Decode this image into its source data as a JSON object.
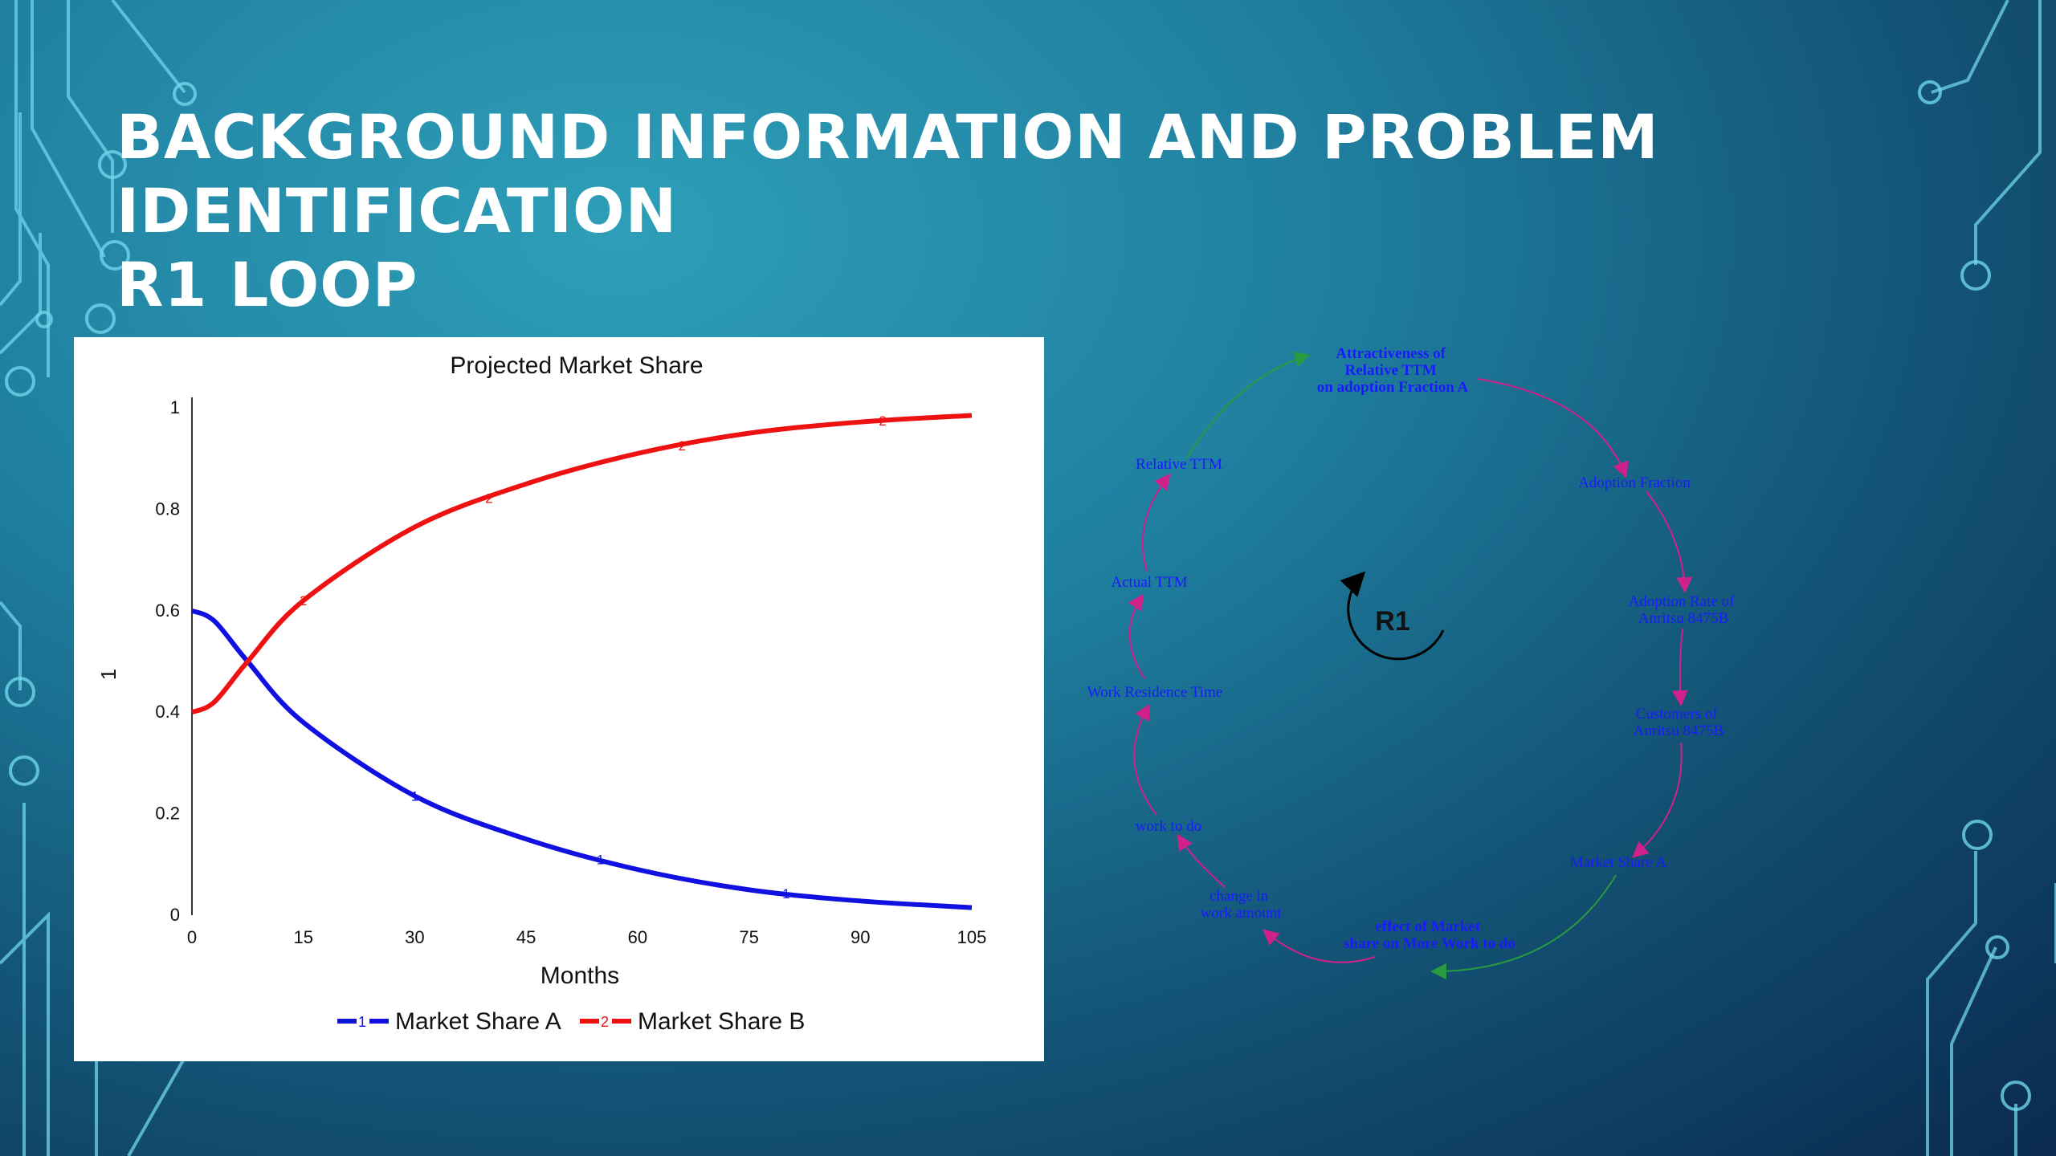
{
  "slide": {
    "title_line1": "BACKGROUND INFORMATION AND PROBLEM IDENTIFICATION",
    "title_line2": "R1 LOOP"
  },
  "colors": {
    "title": "#ffffff",
    "series_a": "#1010e0",
    "series_b": "#ee1111",
    "cld_text": "#1a1aff",
    "arrow_positive": "#d0208a",
    "arrow_link": "#2a9a40"
  },
  "chart_data": {
    "type": "line",
    "title": "Projected Market Share",
    "xlabel": "Months",
    "ylabel": "1",
    "xlim": [
      0,
      105
    ],
    "ylim": [
      0,
      1
    ],
    "x_ticks": [
      "0",
      "15",
      "30",
      "45",
      "60",
      "75",
      "90",
      "105"
    ],
    "y_ticks": [
      "0",
      "0.2",
      "0.4",
      "0.6",
      "0.8",
      "1"
    ],
    "grid": false,
    "legend": "bottom",
    "x": [
      0,
      3,
      7.5,
      15,
      30,
      45,
      60,
      75,
      90,
      105
    ],
    "series": [
      {
        "name": "Market Share A",
        "marker": "1",
        "color": "#1010e0",
        "values": [
          0.6,
          0.58,
          0.5,
          0.38,
          0.235,
          0.15,
          0.09,
          0.05,
          0.028,
          0.015
        ]
      },
      {
        "name": "Market Share B",
        "marker": "2",
        "color": "#ee1111",
        "values": [
          0.4,
          0.42,
          0.5,
          0.62,
          0.765,
          0.85,
          0.91,
          0.95,
          0.972,
          0.985
        ]
      }
    ]
  },
  "loop": {
    "label": "R1",
    "variables": [
      {
        "id": "attractiveness",
        "lines": [
          "Attractiveness of",
          "Relative TTM",
          "on adoption Fraction A"
        ],
        "bold": true
      },
      {
        "id": "adoption-fraction",
        "lines": [
          "Adoption Fraction"
        ],
        "bold": false
      },
      {
        "id": "adoption-rate",
        "lines": [
          "Adoption Rate of",
          "Anritsu 8475B"
        ],
        "bold": false
      },
      {
        "id": "customers",
        "lines": [
          "Customers of",
          "Anritsu 8475B"
        ],
        "bold": false
      },
      {
        "id": "market-share-a",
        "lines": [
          "Market Share A"
        ],
        "bold": false
      },
      {
        "id": "effect-of-market-share",
        "lines": [
          "effect of Market",
          "share on More Work to do"
        ],
        "bold": true
      },
      {
        "id": "change-in-work",
        "lines": [
          "change in",
          "work amount"
        ],
        "bold": false
      },
      {
        "id": "work-to-do",
        "lines": [
          "work to do"
        ],
        "bold": false
      },
      {
        "id": "work-residence-time",
        "lines": [
          "Work Residence Time"
        ],
        "bold": false
      },
      {
        "id": "actual-ttm",
        "lines": [
          "Actual TTM"
        ],
        "bold": false
      },
      {
        "id": "relative-ttm",
        "lines": [
          "Relative TTM"
        ],
        "bold": false
      }
    ]
  }
}
